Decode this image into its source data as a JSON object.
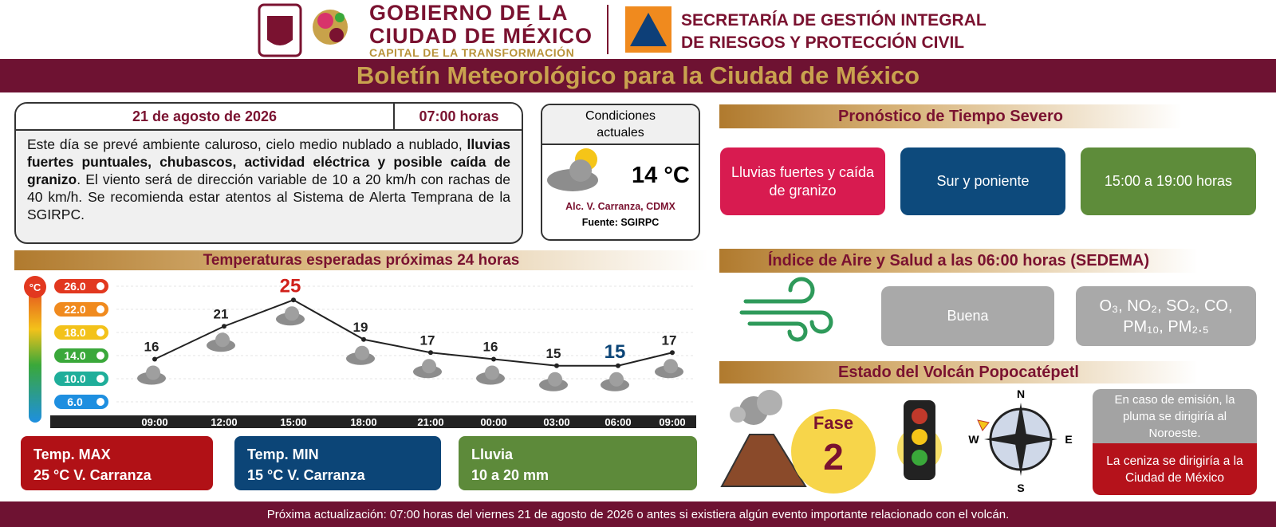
{
  "header": {
    "government": [
      "GOBIERNO DE LA",
      "CIUDAD DE MÉXICO"
    ],
    "slogan": "CAPITAL DE LA TRANSFORMACIÓN",
    "agency": [
      "SECRETARÍA DE GESTIÓN INTEGRAL",
      "DE RIESGOS Y PROTECCIÓN CIVIL"
    ]
  },
  "title": "Boletín Meteorológico para la Ciudad de México",
  "bulletin": {
    "date": "21 de agosto de 2026",
    "time": "07:00 horas",
    "text": [
      "Este día se prevé ambiente caluroso, cielo medio nublado a nublado, ",
      "lluvias fuertes puntuales, chubascos, actividad eléctrica y posible caída de granizo",
      ". El viento será de dirección variable de 10 a 20 km/h con rachas de 40 km/h. Se recomienda estar atentos al Sistema de Alerta Temprana de la SGIRPC."
    ]
  },
  "current_conditions": {
    "title": "Condiciones actuales",
    "temperature": "14 °C",
    "location": "Alc. V. Carranza, CDMX",
    "source": "Fuente: SGIRPC"
  },
  "severe_forecast": {
    "title": "Pronóstico de Tiempo Severo",
    "items": [
      "Lluvias fuertes y caída de granizo",
      "Sur y poniente",
      "15:00 a 19:00 horas"
    ]
  },
  "air_quality": {
    "title": "Índice de Aire y Salud a las 06:00 horas (SEDEMA)",
    "status": "Buena",
    "pollutants": "O₃, NO₂, SO₂, CO, PM₁₀, PM₂.₅"
  },
  "volcano": {
    "title": "Estado del Volcán Popocatépetl",
    "phase_label": "Fase",
    "phase": "2",
    "compass": [
      "N",
      "E",
      "S",
      "W"
    ],
    "plume": "En caso de emisión, la pluma se dirigiría al Noroeste.",
    "ash": "La ceniza se dirigiría a la Ciudad de México"
  },
  "temperature_chart": {
    "type": "line",
    "title": "Temperaturas esperadas próximas 24 horas",
    "unit": "°C",
    "categories": [
      "09:00",
      "12:00",
      "15:00",
      "18:00",
      "21:00",
      "00:00",
      "03:00",
      "06:00",
      "09:00"
    ],
    "values": [
      16,
      21,
      25,
      19,
      17,
      16,
      15,
      15,
      17
    ],
    "color": "#222222",
    "scale_ticks": [
      {
        "value": 26,
        "label": "26.0"
      },
      {
        "value": 22,
        "label": "22.0"
      },
      {
        "value": 18,
        "label": "18.0"
      },
      {
        "value": 14,
        "label": "14.0"
      },
      {
        "value": 10,
        "label": "10.0"
      },
      {
        "value": 6,
        "label": "6.0"
      }
    ],
    "scale_colors": [
      "#e2381f",
      "#f08a1e",
      "#f3c21a",
      "#3aa83a",
      "#1fae9a",
      "#1e8fe0"
    ]
  },
  "summary": [
    {
      "label": "Temp. MAX",
      "text": "25 °C V. Carranza"
    },
    {
      "label": "Temp. MIN",
      "text": "15 °C V. Carranza"
    },
    {
      "label": "Lluvia",
      "text": "10 a 20 mm"
    }
  ],
  "footer": "Próxima actualización: 07:00 horas del viernes 21 de agosto de 2026 o antes si existiera algún evento importante relacionado con el volcán."
}
